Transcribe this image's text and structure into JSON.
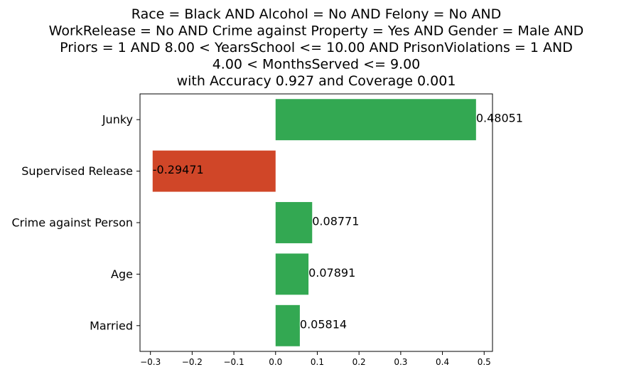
{
  "chart_data": {
    "type": "bar",
    "orientation": "horizontal",
    "title_lines": [
      "Race = Black AND Alcohol = No AND Felony = No AND",
      "WorkRelease = No AND Crime against Property = Yes AND Gender = Male AND",
      "Priors = 1 AND 8.00 < YearsSchool <= 10.00 AND PrisonViolations = 1 AND",
      "4.00 < MonthsServed <= 9.00",
      "with Accuracy 0.927 and Coverage 0.001"
    ],
    "categories": [
      "Junky",
      "Supervised Release",
      "Crime against Person",
      "Age",
      "Married"
    ],
    "values": [
      0.48051,
      -0.29471,
      0.08771,
      0.07891,
      0.05814
    ],
    "value_labels": [
      "0.48051",
      "-0.29471",
      "0.08771",
      "0.07891",
      "0.05814"
    ],
    "xlim": [
      -0.325,
      0.52
    ],
    "xticks": [
      -0.3,
      -0.2,
      -0.1,
      0.0,
      0.1,
      0.2,
      0.3,
      0.4,
      0.5
    ],
    "xtick_labels": [
      "−0.3",
      "−0.2",
      "−0.1",
      "0.0",
      "0.1",
      "0.2",
      "0.3",
      "0.4",
      "0.5"
    ],
    "colors": {
      "positive": "#33a852",
      "negative": "#d04628"
    },
    "grid": false,
    "legend": "none"
  }
}
